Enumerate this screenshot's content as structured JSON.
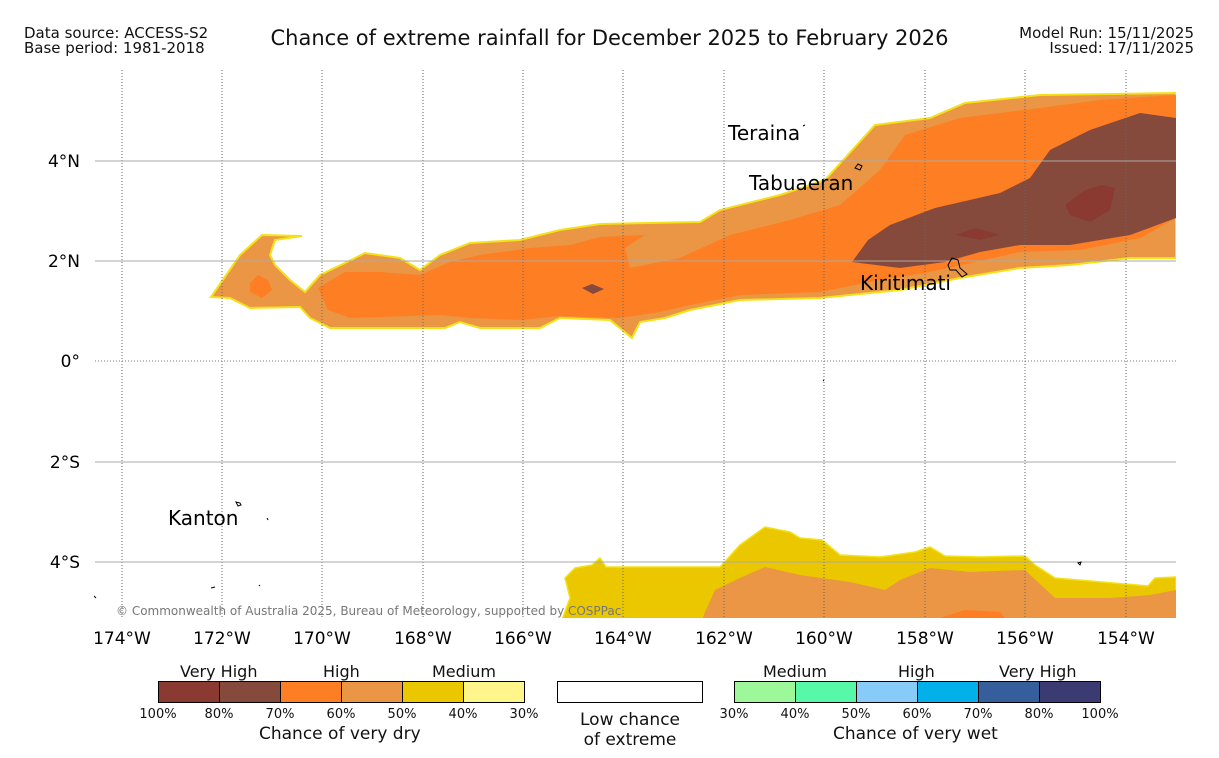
{
  "header": {
    "data_source": "Data source: ACCESS-S2",
    "base_period": "Base period: 1981-2018",
    "title": "Chance of extreme rainfall for December 2025 to February 2026",
    "model_run": "Model Run: 15/11/2025",
    "issued": "Issued: 17/11/2025"
  },
  "map": {
    "lon_ticks": [
      "174°W",
      "172°W",
      "170°W",
      "168°W",
      "166°W",
      "164°W",
      "162°W",
      "160°W",
      "158°W",
      "156°W",
      "154°W"
    ],
    "lat_ticks": [
      "4°N",
      "2°N",
      "0°",
      "2°S",
      "4°S"
    ],
    "places": [
      "Teraina",
      "Tabuaeran",
      "Kiritimati",
      "Kanton"
    ],
    "copyright": "© Commonwealth of Australia 2025, Bureau of Meteorology, supported by COSPPac"
  },
  "legend": {
    "dry": {
      "category_labels": [
        "Very High",
        "High",
        "Medium"
      ],
      "colors": [
        "#8b3a32",
        "#864a3c",
        "#fd7e23",
        "#eb9644",
        "#ebc700",
        "#fef58b"
      ],
      "ticks": [
        "100%",
        "80%",
        "70%",
        "60%",
        "50%",
        "40%",
        "30%"
      ],
      "caption": "Chance of very dry"
    },
    "low": {
      "caption_line1": "Low chance",
      "caption_line2": "of extreme"
    },
    "wet": {
      "category_labels": [
        "Medium",
        "High",
        "Very High"
      ],
      "colors": [
        "#9cf899",
        "#57f9a8",
        "#87cbf8",
        "#03b1ea",
        "#365e9d",
        "#3c3a73"
      ],
      "ticks": [
        "30%",
        "40%",
        "50%",
        "60%",
        "70%",
        "80%",
        "100%"
      ],
      "caption": "Chance of very wet"
    }
  }
}
